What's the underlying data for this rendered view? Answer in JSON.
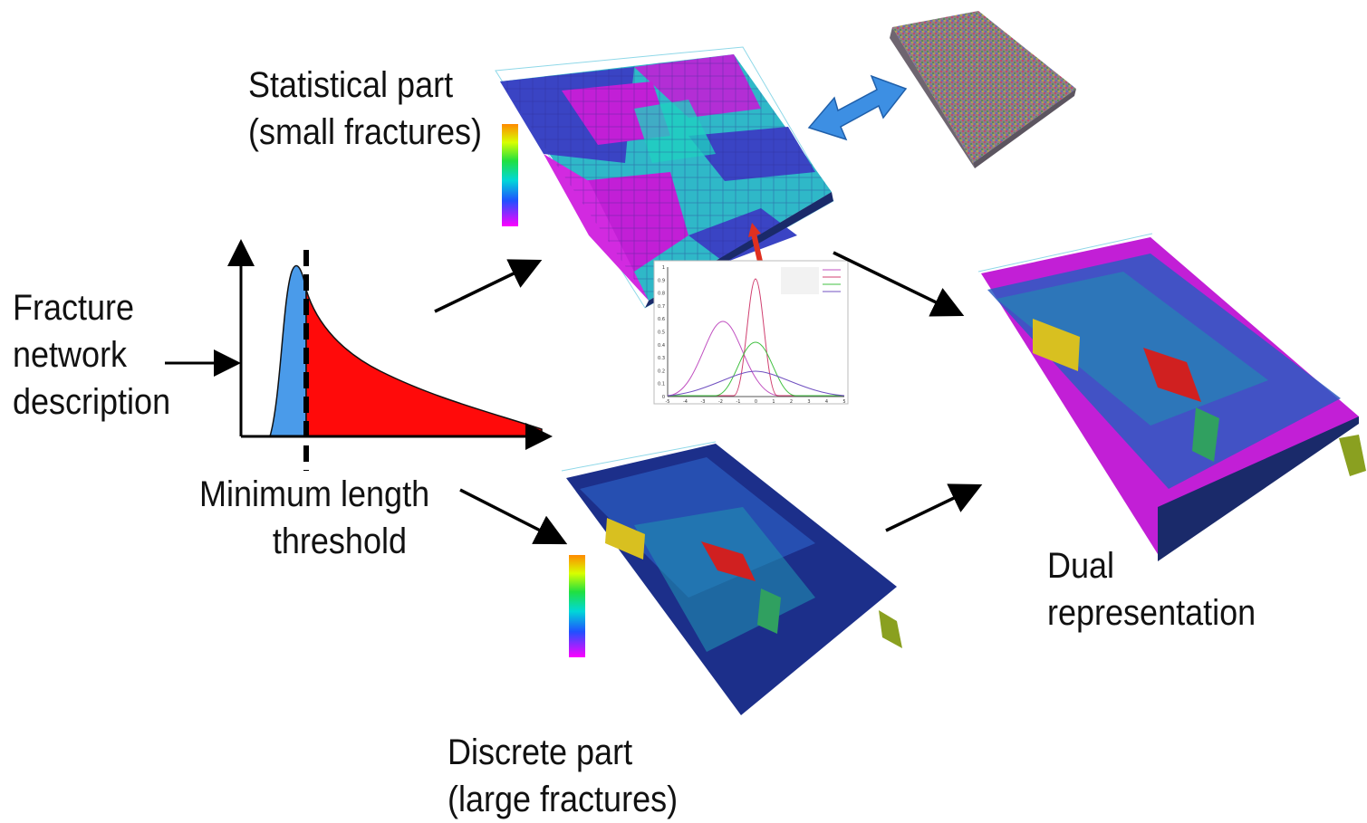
{
  "labels": {
    "fracture_network": [
      "Fracture",
      "network",
      "description"
    ],
    "minimum_length": [
      "Minimum length",
      "threshold"
    ],
    "statistical_part": [
      "Statistical part",
      "(small fractures)"
    ],
    "discrete_part": [
      "Discrete part",
      "(large fractures)"
    ],
    "dual_representation": [
      "Dual",
      "representation"
    ]
  },
  "colors": {
    "small_fractures_fill": "#4a9bea",
    "large_fractures_fill": "#ff0a0a",
    "exchange_arrow": "#3d8fe3",
    "pointer_arrow": "#e03020",
    "magenta": "#c21fd6",
    "teal": "#1fb3c9",
    "blue": "#3542c8"
  },
  "inset_chart": {
    "x_ticks": [
      "-5",
      "-4",
      "-3",
      "-2",
      "-1",
      "0",
      "1",
      "2",
      "3",
      "4",
      "5"
    ],
    "y_ticks": [
      "0",
      "0.1",
      "0.2",
      "0.3",
      "0.4",
      "0.5",
      "0.6",
      "0.7",
      "0.8",
      "0.9",
      "1"
    ],
    "series_colors": [
      "#c050c0",
      "#d04070",
      "#40c040",
      "#7050c0"
    ]
  }
}
